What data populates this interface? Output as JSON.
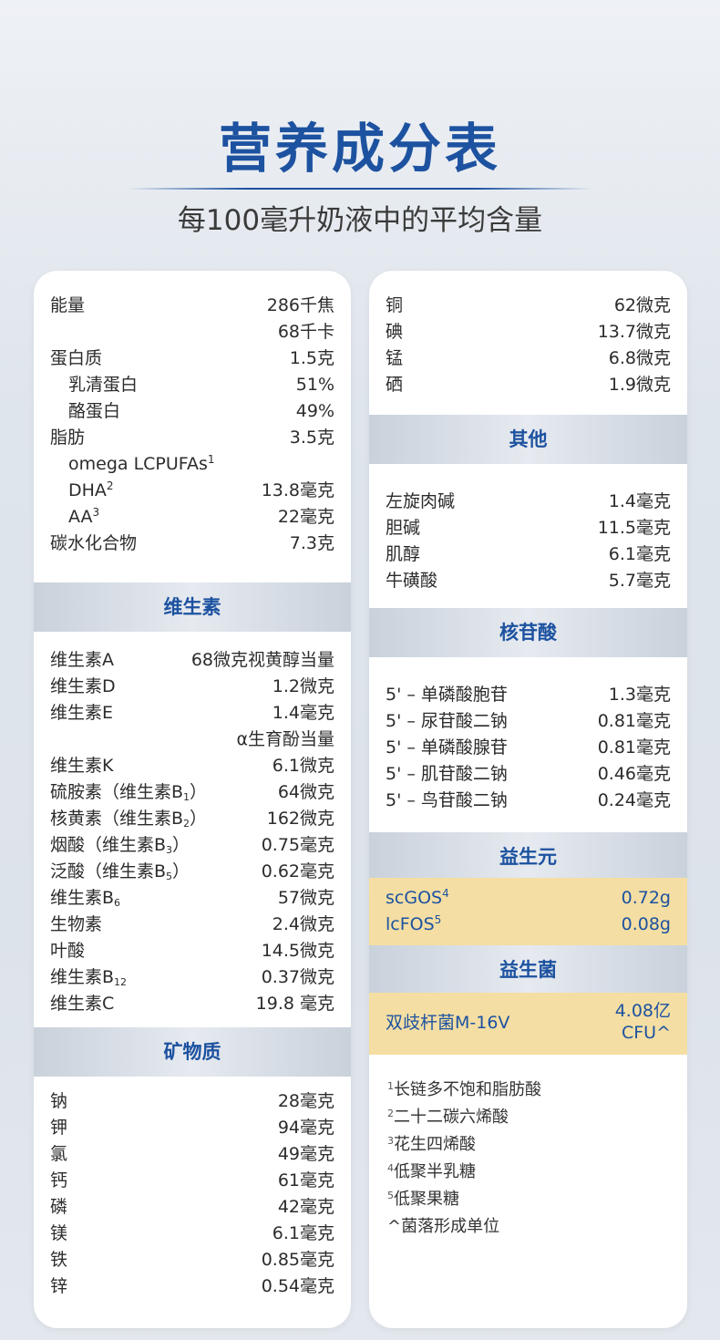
{
  "title": "营养成分表",
  "subtitle": "每100毫升奶液中的平均含量",
  "basics": [
    {
      "label": "能量",
      "value": "286千焦"
    },
    {
      "label": "",
      "value": "68千卡"
    },
    {
      "label": "蛋白质",
      "value": "1.5克"
    },
    {
      "label": "乳清蛋白",
      "value": "51%"
    },
    {
      "label": "酪蛋白",
      "value": "49%"
    },
    {
      "label": "脂肪",
      "value": "3.5克"
    },
    {
      "label": "omega LCPUFAs",
      "sup": "1",
      "value": ""
    },
    {
      "label": "DHA",
      "sup": "2",
      "value": "13.8毫克"
    },
    {
      "label": "AA",
      "sup": "3",
      "value": "22毫克"
    },
    {
      "label": "碳水化合物",
      "value": "7.3克"
    }
  ],
  "vitamins": {
    "heading": "维生素",
    "items": [
      {
        "label": "维生素A",
        "value": "68微克视黄醇当量"
      },
      {
        "label": "维生素D",
        "value": "1.2微克"
      },
      {
        "label": "维生素E",
        "value": "1.4毫克"
      },
      {
        "label": "",
        "value": "α生育酚当量"
      },
      {
        "label": "维生素K",
        "value": "6.1微克"
      },
      {
        "label": "硫胺素（维生素B",
        "sub": "1",
        "suffix": "）",
        "value": "64微克"
      },
      {
        "label": "核黄素（维生素B",
        "sub": "2",
        "suffix": "）",
        "value": "162微克"
      },
      {
        "label": "烟酸（维生素B",
        "sub": "3",
        "suffix": "）",
        "value": "0.75毫克"
      },
      {
        "label": "泛酸（维生素B",
        "sub": "5",
        "suffix": "）",
        "value": "0.62毫克"
      },
      {
        "label": "维生素B",
        "sub": "6",
        "suffix": "",
        "value": "57微克"
      },
      {
        "label": "生物素",
        "value": "2.4微克"
      },
      {
        "label": "叶酸",
        "value": "14.5微克"
      },
      {
        "label": "维生素B",
        "sub": "12",
        "suffix": "",
        "value": "0.37微克"
      },
      {
        "label": "维生素C",
        "value": "19.8 毫克"
      }
    ]
  },
  "minerals": {
    "heading": "矿物质",
    "items": [
      {
        "label": "钠",
        "value": "28毫克"
      },
      {
        "label": "钾",
        "value": "94毫克"
      },
      {
        "label": "氯",
        "value": "49毫克"
      },
      {
        "label": "钙",
        "value": "61毫克"
      },
      {
        "label": "磷",
        "value": "42毫克"
      },
      {
        "label": "镁",
        "value": "6.1毫克"
      },
      {
        "label": "铁",
        "value": "0.85毫克"
      },
      {
        "label": "锌",
        "value": "0.54毫克"
      },
      {
        "label": "铜",
        "value": "62微克"
      },
      {
        "label": "碘",
        "value": "13.7微克"
      },
      {
        "label": "锰",
        "value": "6.8微克"
      },
      {
        "label": "硒",
        "value": "1.9微克"
      }
    ]
  },
  "others": {
    "heading": "其他",
    "items": [
      {
        "label": "左旋肉碱",
        "value": "1.4毫克"
      },
      {
        "label": "胆碱",
        "value": "11.5毫克"
      },
      {
        "label": "肌醇",
        "value": "6.1毫克"
      },
      {
        "label": "牛磺酸",
        "value": "5.7毫克"
      }
    ]
  },
  "nucleotides": {
    "heading": "核苷酸",
    "items": [
      {
        "label": "5' – 单磷酸胞苷",
        "value": "1.3毫克"
      },
      {
        "label": "5' – 尿苷酸二钠",
        "value": "0.81毫克"
      },
      {
        "label": "5' – 单磷酸腺苷",
        "value": "0.81毫克"
      },
      {
        "label": "5' – 肌苷酸二钠",
        "value": "0.46毫克"
      },
      {
        "label": "5' – 鸟苷酸二钠",
        "value": "0.24毫克"
      }
    ]
  },
  "prebiotics": {
    "heading": "益生元",
    "items": [
      {
        "label": "scGOS",
        "sup": "4",
        "value": "0.72g"
      },
      {
        "label": "lcFOS",
        "sup": "5",
        "value": "0.08g"
      }
    ]
  },
  "probiotics": {
    "heading": "益生菌",
    "label": "双歧杆菌M-16V",
    "value_line1": "4.08亿",
    "value_line2": "CFU^"
  },
  "footnotes": [
    {
      "mark": "1",
      "text": "长链多不饱和脂肪酸"
    },
    {
      "mark": "2",
      "text": "二十二碳六烯酸"
    },
    {
      "mark": "3",
      "text": "花生四烯酸"
    },
    {
      "mark": "4",
      "text": "低聚半乳糖"
    },
    {
      "mark": "5",
      "text": "低聚果糖"
    },
    {
      "mark": "^",
      "text": "菌落形成单位"
    }
  ],
  "colors": {
    "brand_blue": "#1d52a0",
    "highlight_gold": "#f4dea3"
  }
}
